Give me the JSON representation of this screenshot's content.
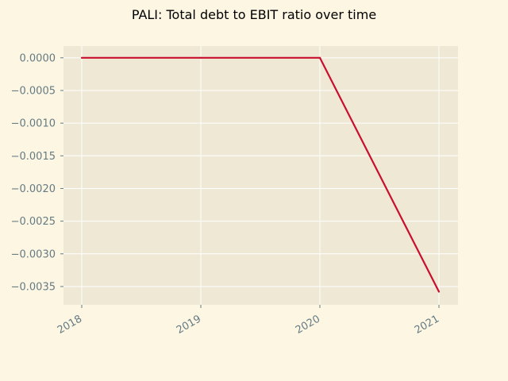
{
  "chart_data": {
    "type": "line",
    "title": "PALI: Total debt to EBIT ratio over time",
    "xlabel": "",
    "ylabel": "",
    "x": [
      "2018",
      "2019",
      "2020",
      "2021"
    ],
    "series": [
      {
        "values": [
          0.0,
          0.0,
          0.0,
          -0.00358
        ]
      }
    ],
    "ylim": [
      -0.00378,
      0.00018
    ],
    "yticks": [
      "0.0000",
      "−0.0005",
      "−0.0010",
      "−0.0015",
      "−0.0020",
      "−0.0025",
      "−0.0030",
      "−0.0035"
    ],
    "ytick_values": [
      0.0,
      -0.0005,
      -0.001,
      -0.0015,
      -0.002,
      -0.0025,
      -0.003,
      -0.0035
    ],
    "grid": true,
    "colors": {
      "background": "#fdf6e3",
      "plot_area": "#eee8d5",
      "grid": "#ffffff",
      "line": "#c8102e",
      "tick_text": "#657b83"
    }
  }
}
